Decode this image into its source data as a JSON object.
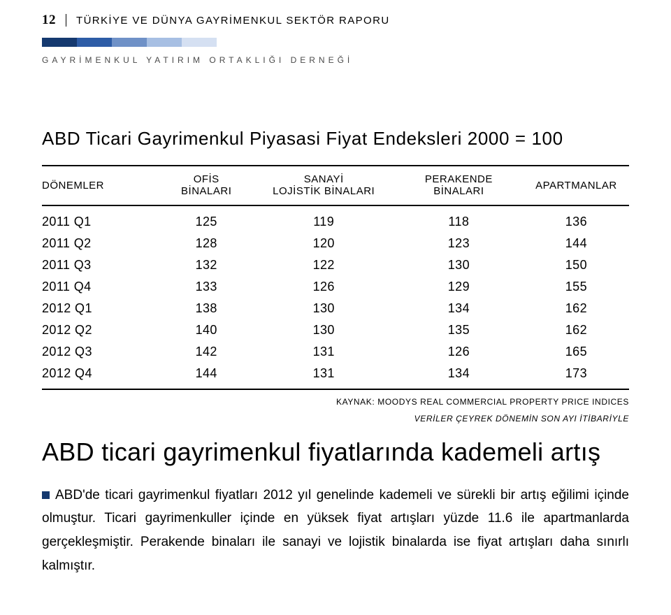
{
  "header": {
    "page_number": "12",
    "report_title": "TÜRKİYE VE DÜNYA GAYRİMENKUL SEKTÖR RAPORU",
    "org_line": "GAYRİMENKUL YATIRIM ORTAKLIĞI DERNEĞİ",
    "gradient_colors": [
      "#15396f",
      "#2d5ca6",
      "#6f91c7",
      "#a7bfe3",
      "#d5e0f2"
    ]
  },
  "table": {
    "title": "ABD Ticari Gayrimenkul Piyasasi Fiyat Endeksleri  2000 = 100",
    "columns": [
      "DÖNEMLER",
      "OFİS\nBİNALARI",
      "SANAYİ\nLOJİSTİK BİNALARI",
      "PERAKENDE BİNALARI",
      "APARTMANLAR"
    ],
    "rows": [
      [
        "2011 Q1",
        "125",
        "119",
        "118",
        "136"
      ],
      [
        "2011 Q2",
        "128",
        "120",
        "123",
        "144"
      ],
      [
        "2011 Q3",
        "132",
        "122",
        "130",
        "150"
      ],
      [
        "2011 Q4",
        "133",
        "126",
        "129",
        "155"
      ],
      [
        "2012 Q1",
        "138",
        "130",
        "134",
        "162"
      ],
      [
        "2012 Q2",
        "140",
        "130",
        "135",
        "162"
      ],
      [
        "2012 Q3",
        "142",
        "131",
        "126",
        "165"
      ],
      [
        "2012 Q4",
        "144",
        "131",
        "134",
        "173"
      ]
    ],
    "source": "KAYNAK: MOODYS REAL COMMERCIAL PROPERTY PRICE INDICES",
    "note": "VERİLER ÇEYREK DÖNEMİN SON  AYI İTİBARİYLE",
    "col_widths": [
      "20%",
      "16%",
      "24%",
      "22%",
      "18%"
    ]
  },
  "headline": "ABD ticari gayrimenkul fiyatlarında kademeli artış",
  "body": "ABD'de ticari gayrimenkul fiyatları 2012 yıl genelinde kademeli ve sürekli bir artış eğilimi içinde olmuştur. Ticari gayrimenkuller içinde en yüksek fiyat artışları yüzde 11.6 ile apartmanlarda gerçekleşmiştir. Perakende binaları ile sanayi ve lojistik binalarda ise fiyat artışları daha sınırlı kalmıştır.",
  "colors": {
    "bullet": "#15396f",
    "text": "#000000",
    "background": "#ffffff"
  }
}
